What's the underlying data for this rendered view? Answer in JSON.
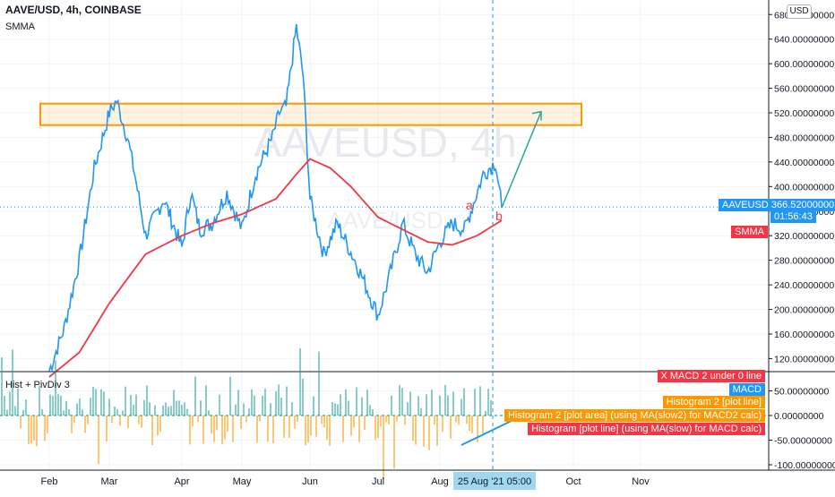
{
  "header": {
    "title": "AAVE/USD, 4h, COINBASE",
    "indicator": "SMMA",
    "watermark_main": "AAVEUSD, 4h",
    "watermark_sub": "AAVE/USD"
  },
  "currency_button": "USD",
  "price_axis": {
    "ticks": [
      "680.00000000",
      "640.00000000",
      "600.00000000",
      "560.00000000",
      "520.00000000",
      "480.00000000",
      "440.00000000",
      "400.00000000",
      "360.00000000",
      "320.00000000",
      "280.00000000",
      "240.00000000",
      "200.00000000",
      "160.00000000",
      "120.00000000"
    ],
    "tick_values": [
      680,
      640,
      600,
      560,
      520,
      480,
      440,
      400,
      360,
      320,
      280,
      240,
      200,
      160,
      120
    ]
  },
  "price_tags": {
    "symbol": "AAVEUSD",
    "price": "366.52000000",
    "countdown": "01:56:43",
    "smma_label": "SMMA",
    "symbol_color": "#2196f3",
    "smma_color": "#f23645"
  },
  "indicator_pane": {
    "label": "Hist + PivDiv 3",
    "ticks": [
      "50.00000000",
      "0.00000000",
      "-50.00000000",
      "-100.00000000"
    ],
    "tick_values": [
      50,
      0,
      -50,
      -100
    ],
    "legend_tags": [
      {
        "text": "X MACD 2 under 0 line",
        "color": "#f23645"
      },
      {
        "text": "MACD",
        "color": "#2196f3"
      },
      {
        "text": "Histogram 2 [plot line]",
        "color": "#ff9800"
      },
      {
        "text": "Histogram 2 [plot area] (using MA(slow2) for MACD2 calc)",
        "color": "#ff9800"
      },
      {
        "text": "Histogram [plot line] (using MA(slow) for MACD calc)",
        "color": "#f23645"
      }
    ]
  },
  "time_axis": {
    "labels": [
      "Feb",
      "Mar",
      "Apr",
      "May",
      "Jun",
      "Jul",
      "Aug",
      "Oct",
      "Nov"
    ],
    "cursor_date": "25 Aug '21",
    "cursor_time": "05:00"
  },
  "annotations": {
    "wave_a": "a",
    "wave_b": "b",
    "resistance_zone": [
      500,
      535
    ],
    "zone_color": "#ff9800",
    "arrow_target": 522
  },
  "chart_data": {
    "type": "line",
    "title": "AAVE/USD, 4h, COINBASE",
    "xlabel": "",
    "ylabel": "",
    "ylim": [
      90,
      690
    ],
    "grid": true,
    "series": [
      {
        "name": "AAVEUSD",
        "color": "#2196f3",
        "x_months": [
          0.0,
          0.25,
          0.5,
          0.75,
          1.0,
          1.1,
          1.25,
          1.35,
          1.5,
          1.75,
          2.0,
          2.15,
          2.3,
          2.5,
          2.75,
          3.0,
          3.2,
          3.45,
          3.55,
          3.65,
          3.8,
          3.9,
          4.0,
          4.2,
          4.4,
          4.7,
          5.0,
          5.2,
          5.4,
          5.6,
          5.8,
          6.0,
          6.2,
          6.4,
          6.5,
          6.7,
          6.9,
          7.0
        ],
        "values": [
          100,
          170,
          280,
          430,
          520,
          540,
          480,
          420,
          320,
          380,
          300,
          390,
          330,
          340,
          390,
          330,
          420,
          480,
          520,
          530,
          660,
          580,
          380,
          290,
          340,
          270,
          190,
          260,
          340,
          290,
          260,
          310,
          340,
          330,
          360,
          420,
          440,
          366
        ]
      },
      {
        "name": "SMMA",
        "color": "#f23645",
        "x_months": [
          0.0,
          0.5,
          1.0,
          1.5,
          2.0,
          2.5,
          3.0,
          3.5,
          3.8,
          4.0,
          4.3,
          4.6,
          5.0,
          5.4,
          5.8,
          6.2,
          6.6,
          7.0
        ],
        "values": [
          90,
          130,
          210,
          290,
          320,
          340,
          355,
          380,
          420,
          445,
          430,
          400,
          350,
          330,
          310,
          305,
          320,
          345
        ]
      }
    ]
  }
}
